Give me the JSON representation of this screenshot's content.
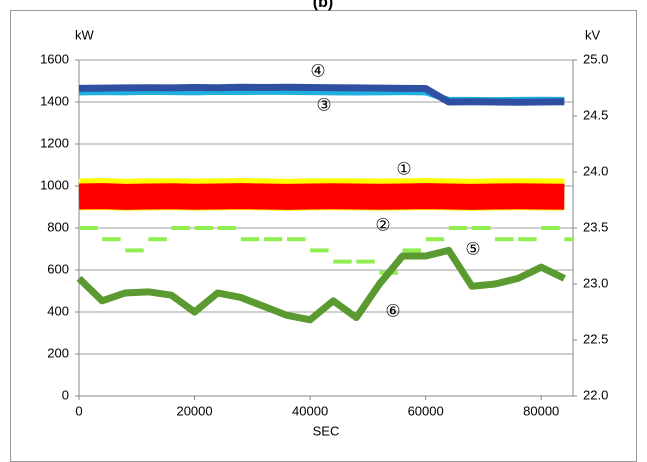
{
  "chart_data": {
    "type": "line",
    "title": "(b)",
    "y_label": "kW",
    "y2_label": "kV",
    "x_label": "SEC",
    "x": [
      0,
      4000,
      8000,
      12000,
      16000,
      20000,
      24000,
      28000,
      32000,
      36000,
      40000,
      44000,
      48000,
      52000,
      56000,
      60000,
      64000,
      68000,
      72000,
      76000,
      80000,
      84000
    ],
    "xlim": [
      0,
      85500
    ],
    "xticks": [
      0,
      20000,
      40000,
      60000,
      80000
    ],
    "ylim": [
      0,
      1600
    ],
    "yticks": [
      0,
      200,
      400,
      600,
      800,
      1000,
      1200,
      1400,
      1600
    ],
    "y2lim": [
      22,
      25
    ],
    "y2ticks": [
      {
        "value": 22,
        "label": "22.0"
      },
      {
        "value": 22.5,
        "label": "22.5"
      },
      {
        "value": 23,
        "label": "23.0"
      },
      {
        "value": 23.5,
        "label": "23.5"
      },
      {
        "value": 24,
        "label": "24.0"
      },
      {
        "value": 24.5,
        "label": "24.5"
      },
      {
        "value": 25,
        "label": "25.0"
      }
    ],
    "grid": true,
    "series": [
      {
        "color": "#ffff00",
        "values": [
          960,
          962,
          958,
          960,
          961,
          959,
          960,
          962,
          960,
          958,
          960,
          961,
          960,
          959,
          960,
          962,
          960,
          958,
          960,
          961,
          960,
          959
        ]
      },
      {
        "color": "#ff0000",
        "values": [
          950,
          952,
          948,
          950,
          951,
          949,
          950,
          952,
          950,
          948,
          950,
          951,
          950,
          949,
          950,
          952,
          950,
          948,
          950,
          951,
          950,
          949
        ]
      },
      {
        "color": "#20b0e0",
        "values": [
          1445,
          1447,
          1446,
          1448,
          1447,
          1446,
          1448,
          1447,
          1449,
          1448,
          1447,
          1446,
          1445,
          1446,
          1447,
          1446,
          1410,
          1410,
          1409,
          1410,
          1411,
          1410
        ]
      },
      {
        "color": "#2f4fa0",
        "values": [
          1465,
          1466,
          1467,
          1468,
          1467,
          1469,
          1468,
          1470,
          1469,
          1470,
          1469,
          1468,
          1467,
          1466,
          1465,
          1464,
          1400,
          1401,
          1400,
          1399,
          1400,
          1401
        ]
      },
      {
        "color": "#90ee50",
        "axis": "y2",
        "marker": "dash",
        "values": [
          23.5,
          23.4,
          23.3,
          23.4,
          23.5,
          23.5,
          23.5,
          23.4,
          23.4,
          23.4,
          23.3,
          23.2,
          23.2,
          23.1,
          23.3,
          23.4,
          23.5,
          23.5,
          23.4,
          23.4,
          23.5,
          23.4
        ]
      },
      {
        "color": "#5a9a30",
        "axis": "y2",
        "values": [
          23.05,
          22.85,
          22.92,
          22.93,
          22.9,
          22.75,
          22.92,
          22.88,
          22.8,
          22.72,
          22.68,
          22.85,
          22.7,
          23.0,
          23.25,
          23.25,
          23.3,
          22.98,
          23.0,
          23.05,
          23.15,
          23.05
        ]
      }
    ],
    "annotations": [
      "①",
      "②",
      "③",
      "④",
      "⑤",
      "⑥"
    ]
  }
}
